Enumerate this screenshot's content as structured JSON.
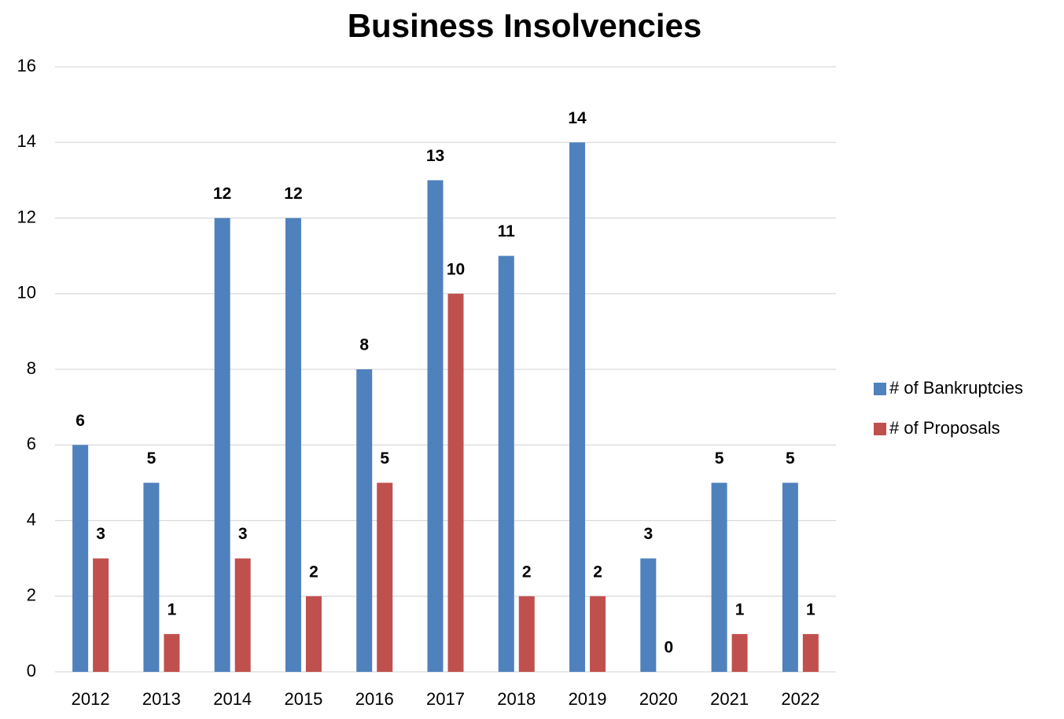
{
  "chart_data": {
    "type": "bar",
    "title": "Business Insolvencies",
    "categories": [
      "2012",
      "2013",
      "2014",
      "2015",
      "2016",
      "2017",
      "2018",
      "2019",
      "2020",
      "2021",
      "2022"
    ],
    "series": [
      {
        "name": "# of Bankruptcies",
        "color": "#4f81bd",
        "values": [
          6,
          5,
          12,
          12,
          8,
          13,
          11,
          14,
          3,
          5,
          5
        ]
      },
      {
        "name": "# of Proposals",
        "color": "#c0504d",
        "values": [
          3,
          1,
          3,
          2,
          5,
          10,
          2,
          2,
          0,
          1,
          1
        ]
      }
    ],
    "ylim": [
      0,
      16
    ],
    "yticks": [
      0,
      2,
      4,
      6,
      8,
      10,
      12,
      14,
      16
    ],
    "grid": true,
    "legend": "right"
  }
}
